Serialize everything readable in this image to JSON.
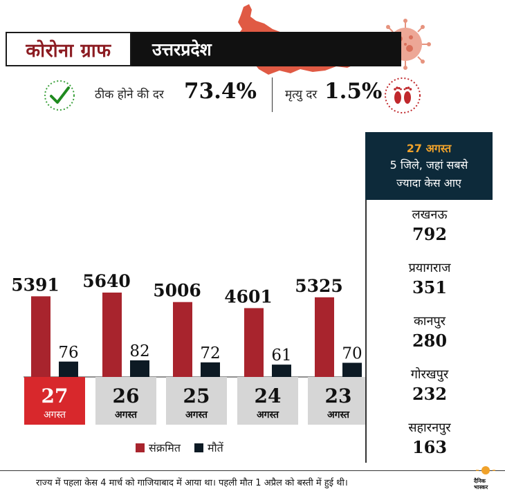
{
  "header": {
    "title": "कोरोना ग्राफ",
    "state": "उत्तरप्रदेश"
  },
  "stats": {
    "recovery_label": "ठीक होने की दर",
    "recovery_value": "73.4%",
    "death_label": "मृत्यु दर",
    "death_value": "1.5%"
  },
  "colors": {
    "infected": "#a8242d",
    "deaths": "#0d1a24",
    "highlight_day": "#d8282c",
    "day_box": "#d6d6d6",
    "panel": "#0d2a3a",
    "accent": "#f0a22b"
  },
  "chart_data": {
    "type": "bar",
    "categories": [
      "27",
      "26",
      "25",
      "24",
      "23"
    ],
    "category_sublabel": "अगस्त",
    "series": [
      {
        "name": "संक्रमित",
        "values": [
          5391,
          5640,
          5006,
          4601,
          5325
        ]
      },
      {
        "name": "मौतें",
        "values": [
          76,
          82,
          72,
          61,
          70
        ]
      }
    ],
    "legend": {
      "position": "bottom"
    },
    "grid": false
  },
  "panel": {
    "date": "27 अगस्त",
    "title_line1": "5 जिले, जहां सबसे",
    "title_line2": "ज्यादा केस आए",
    "districts": [
      {
        "name": "लखनऊ",
        "value": "792"
      },
      {
        "name": "प्रयागराज",
        "value": "351"
      },
      {
        "name": "कानपुर",
        "value": "280"
      },
      {
        "name": "गोरखपुर",
        "value": "232"
      },
      {
        "name": "सहारनपुर",
        "value": "163"
      }
    ]
  },
  "footer": {
    "note": "राज्य में पहला केस 4 मार्च को गाजियाबाद में आया था। पहली मौत 1 अप्रैल को बस्ती में हुई थी।",
    "logo_line1": "दैनिक",
    "logo_line2": "भास्कर"
  }
}
